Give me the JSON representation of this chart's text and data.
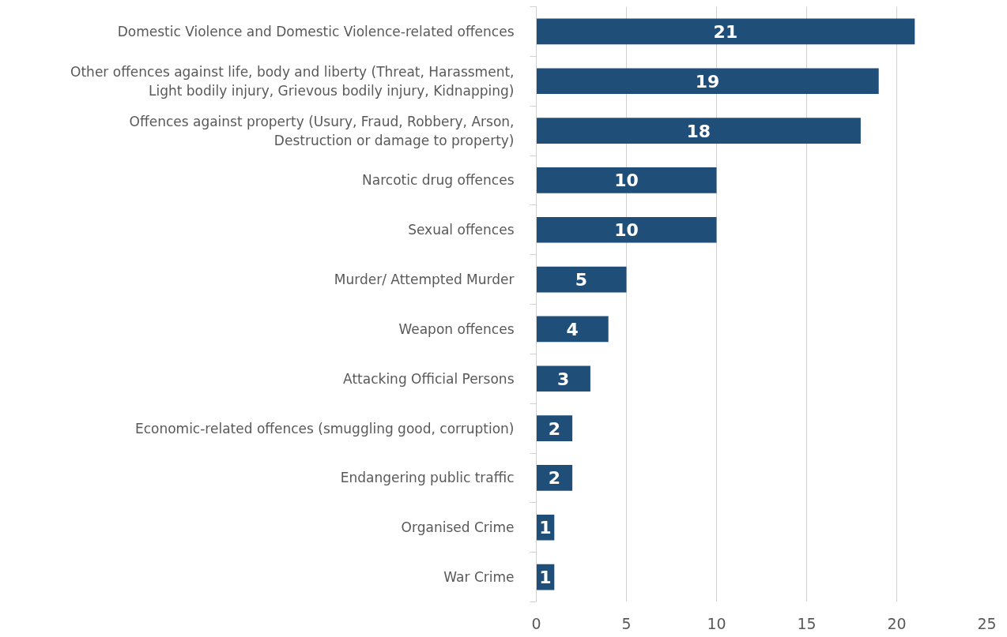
{
  "chart_data": {
    "type": "bar",
    "orientation": "horizontal",
    "categories": [
      "Domestic Violence and Domestic Violence-related offences",
      "Other offences against life, body and liberty (Threat, Harassment,\nLight bodily injury, Grievous bodily injury, Kidnapping)",
      "Offences against property (Usury, Fraud, Robbery, Arson,\nDestruction or damage to property)",
      "Narcotic drug offences",
      "Sexual offences",
      "Murder/ Attempted Murder",
      "Weapon offences",
      "Attacking Official Persons",
      "Economic-related offences (smuggling good, corruption)",
      "Endangering public traffic",
      "Organised Crime",
      "War Crime"
    ],
    "values": [
      21,
      19,
      18,
      10,
      10,
      5,
      4,
      3,
      2,
      2,
      1,
      1
    ],
    "color": "#1f4e79",
    "xlim": [
      0,
      25
    ],
    "xticks": [
      0,
      5,
      10,
      15,
      20,
      25
    ],
    "grid": "x",
    "data_labels": true
  }
}
